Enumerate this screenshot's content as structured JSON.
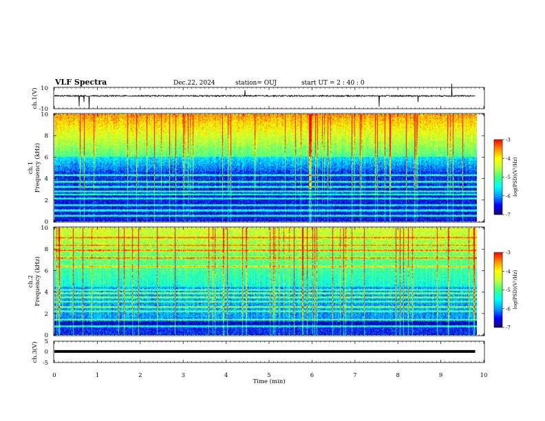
{
  "header": {
    "title": "VLF Spectra",
    "date": "Dec.22, 2024",
    "station": "station= OUJ",
    "start_ut": "start  UT =  2 : 40 : 0"
  },
  "colors": {
    "trace": "#000000",
    "colormap": [
      "#1a0a6b",
      "#0000ff",
      "#00a0ff",
      "#00ffff",
      "#40ff80",
      "#c0ff40",
      "#ffff00",
      "#ff9000",
      "#ff0000",
      "#ffffff"
    ]
  },
  "chart_data": [
    {
      "type": "line",
      "name": "ch1-voltage",
      "ylabel": "ch.1(V)",
      "ylim": [
        -10,
        10
      ],
      "yticks": [
        "10",
        "-10"
      ],
      "x_extent_min": [
        0,
        9.8
      ],
      "level_v": 2.0,
      "noise_v": 0.6
    },
    {
      "type": "heatmap",
      "name": "ch1-spectrogram",
      "ylabel_lines": [
        "ch.1",
        "Frequency  (kHz)"
      ],
      "ylim": [
        0,
        10
      ],
      "yticks": [
        "0",
        "2",
        "4",
        "6",
        "8",
        "10"
      ],
      "colorbar": {
        "range": [
          -7,
          -3
        ],
        "ticks": [
          "-3",
          "-4",
          "-5",
          "-6",
          "-7"
        ],
        "label": "log(PSD)(V²/Hz)"
      },
      "lines_khz": [
        0.5,
        1.0,
        1.5,
        2.1,
        2.5,
        2.8,
        3.2,
        3.7,
        4.3
      ],
      "turbulent_above_khz": 6.0
    },
    {
      "type": "heatmap",
      "name": "ch2-spectrogram",
      "ylabel_lines": [
        "ch.2",
        "Frequency  (kHz)"
      ],
      "ylim": [
        0,
        10
      ],
      "yticks": [
        "0",
        "2",
        "4",
        "6",
        "8",
        "10"
      ],
      "colorbar": {
        "range": [
          -7,
          -3
        ],
        "ticks": [
          "-3",
          "-4",
          "-5",
          "-6",
          "-7"
        ],
        "label": "log(PSD)(V²/Hz)"
      },
      "lines_khz": [
        0.8,
        1.4,
        2.2,
        2.6,
        3.1,
        3.5,
        3.9,
        4.2,
        6.4,
        7.2,
        7.9,
        8.4,
        9.1
      ],
      "turbulent_above_khz": 4.5
    },
    {
      "type": "line",
      "name": "ch3-voltage",
      "ylabel": "ch.3(V)",
      "ylim": [
        -5,
        5
      ],
      "yticks": [
        "5",
        "0",
        "-5"
      ],
      "x_extent_min": [
        0,
        9.8
      ],
      "level_v": 0.2
    }
  ],
  "xaxis": {
    "label": "Time  (min)",
    "range": [
      0,
      10
    ],
    "ticks": [
      "0",
      "1",
      "2",
      "3",
      "4",
      "5",
      "6",
      "7",
      "8",
      "9",
      "10"
    ]
  }
}
